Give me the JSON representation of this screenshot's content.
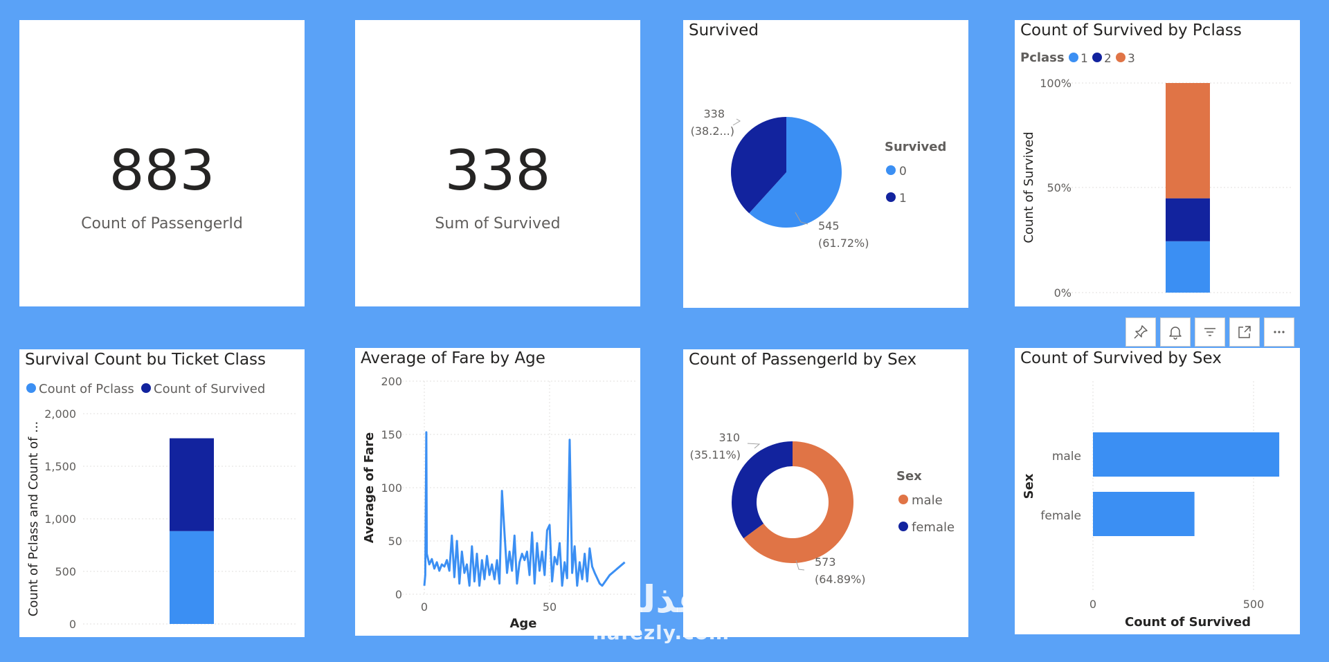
{
  "theme": {
    "background": "#5aa2f7",
    "tile": "#ffffff",
    "c0": "#3b8ff3",
    "c1": "#12239e",
    "c2": "#e07446"
  },
  "cards": [
    {
      "value": "883",
      "label": "Count of PassengerId"
    },
    {
      "value": "338",
      "label": "Sum of Survived"
    }
  ],
  "survived_pie": {
    "title": "Survived",
    "legend_title": "Survived",
    "legend": [
      "0",
      "1"
    ],
    "labels": [
      {
        "value": "545",
        "pct": "(61.72%)"
      },
      {
        "value": "338",
        "pct": "(38.2...)"
      }
    ]
  },
  "pclass_chart": {
    "title": "Count of Survived by Pclass",
    "legend_title": "Pclass",
    "legend": [
      "1",
      "2",
      "3"
    ],
    "ylabel": "Count of Survived",
    "yticks": [
      "100%",
      "50%",
      "0%"
    ]
  },
  "ticket_chart": {
    "title": "Survival Count bu Ticket Class",
    "legend": [
      "Count of Pclass",
      "Count of Survived"
    ],
    "ylabel": "Count of Pclass and Count of ...",
    "yticks": [
      "2,000",
      "1,500",
      "1,000",
      "500",
      "0"
    ]
  },
  "fare_chart": {
    "title": "Average of Fare by Age",
    "ylabel": "Average of Fare",
    "xlabel": "Age",
    "yticks": [
      "200",
      "150",
      "100",
      "50",
      "0"
    ],
    "xticks": [
      "0",
      "50"
    ]
  },
  "sex_donut": {
    "title": "Count of PassengerId by Sex",
    "legend_title": "Sex",
    "legend": [
      "male",
      "female"
    ],
    "labels": [
      {
        "value": "573",
        "pct": "(64.89%)"
      },
      {
        "value": "310",
        "pct": "(35.11%)"
      }
    ]
  },
  "sex_bar": {
    "title": "Count of Survived by Sex",
    "ylabel": "Sex",
    "xlabel": "Count of Survived",
    "xticks": [
      "0",
      "500"
    ]
  },
  "toolbar": {
    "icons": [
      "pin-icon",
      "bell-icon",
      "filter-icon",
      "expand-icon",
      "more-icon"
    ]
  },
  "watermark": {
    "arabic": "نفذلي",
    "latin": "nafezly.com"
  },
  "chart_data": [
    {
      "type": "pie",
      "title": "Survived",
      "categories": [
        "0",
        "1"
      ],
      "values": [
        545,
        338
      ],
      "percentages": [
        61.72,
        38.28
      ]
    },
    {
      "type": "bar",
      "stacked": "100%",
      "title": "Count of Survived by Pclass",
      "categories": [
        ""
      ],
      "series": [
        {
          "name": "1",
          "values": [
            0.245
          ]
        },
        {
          "name": "2",
          "values": [
            0.205
          ]
        },
        {
          "name": "3",
          "values": [
            0.55
          ]
        }
      ],
      "ylabel": "Count of Survived",
      "ylim": [
        0,
        1
      ]
    },
    {
      "type": "bar",
      "stacked": true,
      "title": "Survival Count bu Ticket Class",
      "categories": [
        ""
      ],
      "series": [
        {
          "name": "Count of Pclass",
          "values": [
            883
          ]
        },
        {
          "name": "Count of Survived",
          "values": [
            883
          ]
        }
      ],
      "ylabel": "Count of Pclass and Count of ...",
      "ylim": [
        0,
        2000
      ],
      "grid": true
    },
    {
      "type": "line",
      "title": "Average of Fare by Age",
      "xlabel": "Age",
      "ylabel": "Average of Fare",
      "xlim": [
        -3,
        80
      ],
      "ylim": [
        0,
        200
      ],
      "x": [
        0.0,
        0.4,
        0.8,
        1.0,
        2,
        3,
        4,
        5,
        6,
        7,
        8,
        9,
        10,
        11,
        12,
        13,
        14,
        15,
        16,
        17,
        18,
        19,
        20,
        21,
        22,
        23,
        24,
        25,
        26,
        27,
        28,
        29,
        30,
        31,
        32,
        33,
        34,
        35,
        36,
        37,
        38,
        39,
        40,
        41,
        42,
        43,
        44,
        45,
        46,
        47,
        48,
        49,
        50,
        51,
        52,
        53,
        54,
        55,
        56,
        57,
        58,
        59,
        60,
        61,
        62,
        63,
        64,
        65,
        66,
        67,
        68,
        70,
        71,
        74,
        80
      ],
      "values": [
        8,
        18,
        152,
        38,
        28,
        33,
        24,
        30,
        22,
        28,
        26,
        32,
        22,
        55,
        16,
        50,
        10,
        40,
        20,
        28,
        8,
        45,
        12,
        38,
        8,
        32,
        14,
        36,
        18,
        28,
        14,
        32,
        10,
        97,
        58,
        20,
        40,
        22,
        55,
        10,
        30,
        38,
        32,
        40,
        18,
        58,
        10,
        48,
        22,
        40,
        18,
        60,
        65,
        12,
        35,
        28,
        48,
        8,
        30,
        15,
        145,
        20,
        45,
        8,
        30,
        14,
        38,
        12,
        43,
        26,
        20,
        10,
        8,
        18,
        30
      ],
      "grid": true
    },
    {
      "type": "pie",
      "donut": true,
      "title": "Count of PassengerId by Sex",
      "categories": [
        "male",
        "female"
      ],
      "values": [
        573,
        310
      ],
      "percentages": [
        64.89,
        35.11
      ]
    },
    {
      "type": "bar",
      "orientation": "horizontal",
      "title": "Count of Survived by Sex",
      "categories": [
        "male",
        "female"
      ],
      "values": [
        580,
        316
      ],
      "xlabel": "Count of Survived",
      "ylabel": "Sex",
      "xlim": [
        0,
        620
      ]
    }
  ]
}
